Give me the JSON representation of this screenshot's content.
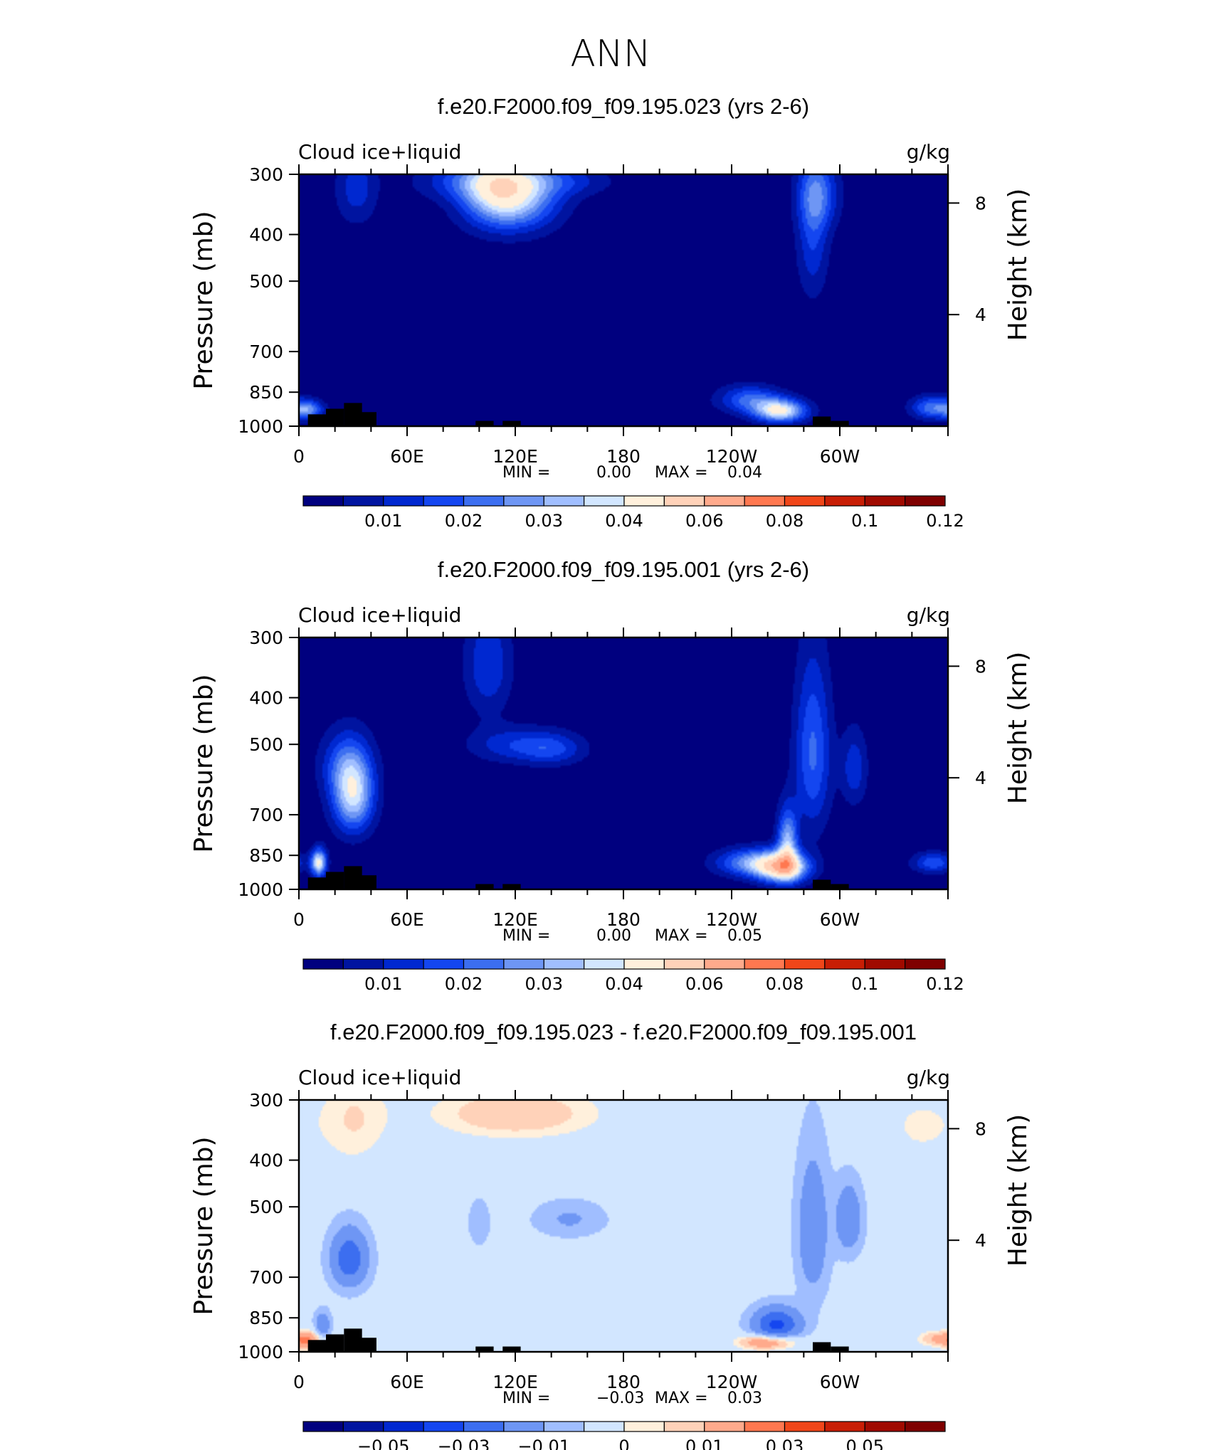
{
  "page_title": "ANN",
  "colors": {
    "abs_levels": [
      "#00007f",
      "#0014a0",
      "#0028d0",
      "#1446f0",
      "#3c6ef0",
      "#6e96f4",
      "#a0beff",
      "#d2e6ff",
      "#fff0dc",
      "#ffd2b9",
      "#ffaa8c",
      "#ff7850",
      "#f04619",
      "#c81e05",
      "#a00a00",
      "#7f0000"
    ],
    "diff_levels": [
      "#00007f",
      "#0014a0",
      "#0028d0",
      "#1446f0",
      "#3c6ef0",
      "#6e96f4",
      "#a0beff",
      "#d2e6ff",
      "#fff0dc",
      "#ffd2b9",
      "#ffaa8c",
      "#ff7850",
      "#f04619",
      "#c81e05",
      "#a00a00",
      "#7f0000"
    ],
    "land": "#000000"
  },
  "chart_data": [
    {
      "type": "heatmap",
      "title": "f.e20.F2000.f09_f09.195.023 (yrs 2-6)",
      "left_label": "Cloud ice+liquid",
      "units": "g/kg",
      "ylabel": "Pressure (mb)",
      "ylabel_right": "Height (km)",
      "x_ticks": [
        "0",
        "60E",
        "120E",
        "180",
        "120W",
        "60W"
      ],
      "x_range": [
        0,
        360
      ],
      "y_ticks": [
        "300",
        "400",
        "500",
        "700",
        "850",
        "1000"
      ],
      "y_range": [
        300,
        1000
      ],
      "y_right_ticks": [
        "8",
        "4"
      ],
      "min_label": "MIN =",
      "min_value": "0.00",
      "max_label": "MAX =",
      "max_value": "0.04",
      "colorbar_labels": [
        "0.01",
        "0.02",
        "0.03",
        "0.04",
        "0.06",
        "0.08",
        "0.1",
        "0.12"
      ],
      "features": [
        {
          "lon": 5,
          "p": 925,
          "v": 0.025,
          "sx": 6,
          "sp": 30
        },
        {
          "lon": 32,
          "p": 320,
          "v": 0.012,
          "sx": 8,
          "sp": 40
        },
        {
          "lon": 108,
          "p": 325,
          "v": 0.03,
          "sx": 14,
          "sp": 40
        },
        {
          "lon": 125,
          "p": 330,
          "v": 0.025,
          "sx": 15,
          "sp": 40
        },
        {
          "lon": 93,
          "p": 310,
          "v": 0.012,
          "sx": 20,
          "sp": 20
        },
        {
          "lon": 148,
          "p": 310,
          "v": 0.01,
          "sx": 18,
          "sp": 16
        },
        {
          "lon": 285,
          "p": 400,
          "v": 0.014,
          "sx": 6,
          "sp": 90
        },
        {
          "lon": 288,
          "p": 330,
          "v": 0.018,
          "sx": 8,
          "sp": 40
        },
        {
          "lon": 267,
          "p": 930,
          "v": 0.04,
          "sx": 10,
          "sp": 35
        },
        {
          "lon": 250,
          "p": 880,
          "v": 0.02,
          "sx": 12,
          "sp": 40
        },
        {
          "lon": 351,
          "p": 915,
          "v": 0.022,
          "sx": 8,
          "sp": 35
        }
      ],
      "land": [
        [
          10,
          945
        ],
        [
          20,
          920
        ],
        [
          30,
          895
        ],
        [
          38,
          935
        ],
        [
          103,
          975
        ],
        [
          118,
          975
        ],
        [
          290,
          955
        ],
        [
          300,
          975
        ]
      ]
    },
    {
      "type": "heatmap",
      "title": "f.e20.F2000.f09_f09.195.001 (yrs 2-6)",
      "left_label": "Cloud ice+liquid",
      "units": "g/kg",
      "ylabel": "Pressure (mb)",
      "ylabel_right": "Height (km)",
      "x_ticks": [
        "0",
        "60E",
        "120E",
        "180",
        "120W",
        "60W"
      ],
      "x_range": [
        0,
        360
      ],
      "y_ticks": [
        "300",
        "400",
        "500",
        "700",
        "850",
        "1000"
      ],
      "y_range": [
        300,
        1000
      ],
      "y_right_ticks": [
        "8",
        "4"
      ],
      "min_label": "MIN =",
      "min_value": "0.00",
      "max_label": "MAX =",
      "max_value": "0.05",
      "colorbar_labels": [
        "0.01",
        "0.02",
        "0.03",
        "0.04",
        "0.06",
        "0.08",
        "0.1",
        "0.12"
      ],
      "features": [
        {
          "lon": 11,
          "p": 880,
          "v": 0.04,
          "sx": 3,
          "sp": 40
        },
        {
          "lon": 30,
          "p": 640,
          "v": 0.035,
          "sx": 8,
          "sp": 80
        },
        {
          "lon": 26,
          "p": 550,
          "v": 0.015,
          "sx": 10,
          "sp": 60
        },
        {
          "lon": 105,
          "p": 340,
          "v": 0.014,
          "sx": 9,
          "sp": 60
        },
        {
          "lon": 116,
          "p": 500,
          "v": 0.011,
          "sx": 16,
          "sp": 30
        },
        {
          "lon": 140,
          "p": 510,
          "v": 0.015,
          "sx": 13,
          "sp": 28
        },
        {
          "lon": 285,
          "p": 520,
          "v": 0.02,
          "sx": 7,
          "sp": 150
        },
        {
          "lon": 271,
          "p": 800,
          "v": 0.03,
          "sx": 4,
          "sp": 90
        },
        {
          "lon": 268,
          "p": 900,
          "v": 0.05,
          "sx": 10,
          "sp": 45
        },
        {
          "lon": 250,
          "p": 880,
          "v": 0.025,
          "sx": 13,
          "sp": 40
        },
        {
          "lon": 308,
          "p": 560,
          "v": 0.013,
          "sx": 5,
          "sp": 70
        },
        {
          "lon": 352,
          "p": 880,
          "v": 0.018,
          "sx": 8,
          "sp": 30
        }
      ],
      "land": [
        [
          10,
          945
        ],
        [
          20,
          920
        ],
        [
          30,
          895
        ],
        [
          38,
          935
        ],
        [
          103,
          975
        ],
        [
          118,
          975
        ],
        [
          290,
          955
        ],
        [
          300,
          975
        ]
      ]
    },
    {
      "type": "heatmap",
      "title": "f.e20.F2000.f09_f09.195.023 - f.e20.F2000.f09_f09.195.001",
      "left_label": "Cloud ice+liquid",
      "units": "g/kg",
      "ylabel": "Pressure (mb)",
      "ylabel_right": "Height (km)",
      "x_ticks": [
        "0",
        "60E",
        "120E",
        "180",
        "120W",
        "60W"
      ],
      "x_range": [
        0,
        360
      ],
      "y_ticks": [
        "300",
        "400",
        "500",
        "700",
        "850",
        "1000"
      ],
      "y_range": [
        300,
        1000
      ],
      "y_right_ticks": [
        "8",
        "4"
      ],
      "min_label": "MIN =",
      "min_value": "−0.03",
      "max_label": "MAX =",
      "max_value": "0.03",
      "colorbar_labels": [
        "−0.05",
        "−0.03",
        "−0.01",
        "0",
        "0.01",
        "0.03",
        "0.05"
      ],
      "features": [
        {
          "lon": 120,
          "p": 320,
          "v": 0.012,
          "sx": 35,
          "sp": 30
        },
        {
          "lon": 30,
          "p": 330,
          "v": 0.008,
          "sx": 15,
          "sp": 60
        },
        {
          "lon": 345,
          "p": 340,
          "v": 0.006,
          "sx": 15,
          "sp": 40
        },
        {
          "lon": 5,
          "p": 950,
          "v": 0.02,
          "sx": 5,
          "sp": 30
        },
        {
          "lon": 260,
          "p": 955,
          "v": 0.025,
          "sx": 11,
          "sp": 25
        },
        {
          "lon": 355,
          "p": 940,
          "v": 0.015,
          "sx": 8,
          "sp": 25
        },
        {
          "lon": 75,
          "p": 880,
          "v": 0.005,
          "sx": 12,
          "sp": 40
        },
        {
          "lon": 160,
          "p": 700,
          "v": 0.005,
          "sx": 10,
          "sp": 25
        },
        {
          "lon": 335,
          "p": 710,
          "v": 0.005,
          "sx": 12,
          "sp": 25
        },
        {
          "lon": 28,
          "p": 640,
          "v": -0.025,
          "sx": 7,
          "sp": 60
        },
        {
          "lon": 13,
          "p": 880,
          "v": -0.015,
          "sx": 3,
          "sp": 40
        },
        {
          "lon": 265,
          "p": 880,
          "v": -0.03,
          "sx": 9,
          "sp": 50
        },
        {
          "lon": 285,
          "p": 560,
          "v": -0.015,
          "sx": 6,
          "sp": 130
        },
        {
          "lon": 305,
          "p": 530,
          "v": -0.016,
          "sx": 5,
          "sp": 60
        },
        {
          "lon": 150,
          "p": 530,
          "v": -0.008,
          "sx": 13,
          "sp": 30
        },
        {
          "lon": 100,
          "p": 540,
          "v": -0.006,
          "sx": 4,
          "sp": 40
        }
      ],
      "land": [
        [
          10,
          945
        ],
        [
          20,
          920
        ],
        [
          30,
          895
        ],
        [
          38,
          935
        ],
        [
          103,
          975
        ],
        [
          118,
          975
        ],
        [
          290,
          955
        ],
        [
          300,
          975
        ]
      ]
    }
  ]
}
